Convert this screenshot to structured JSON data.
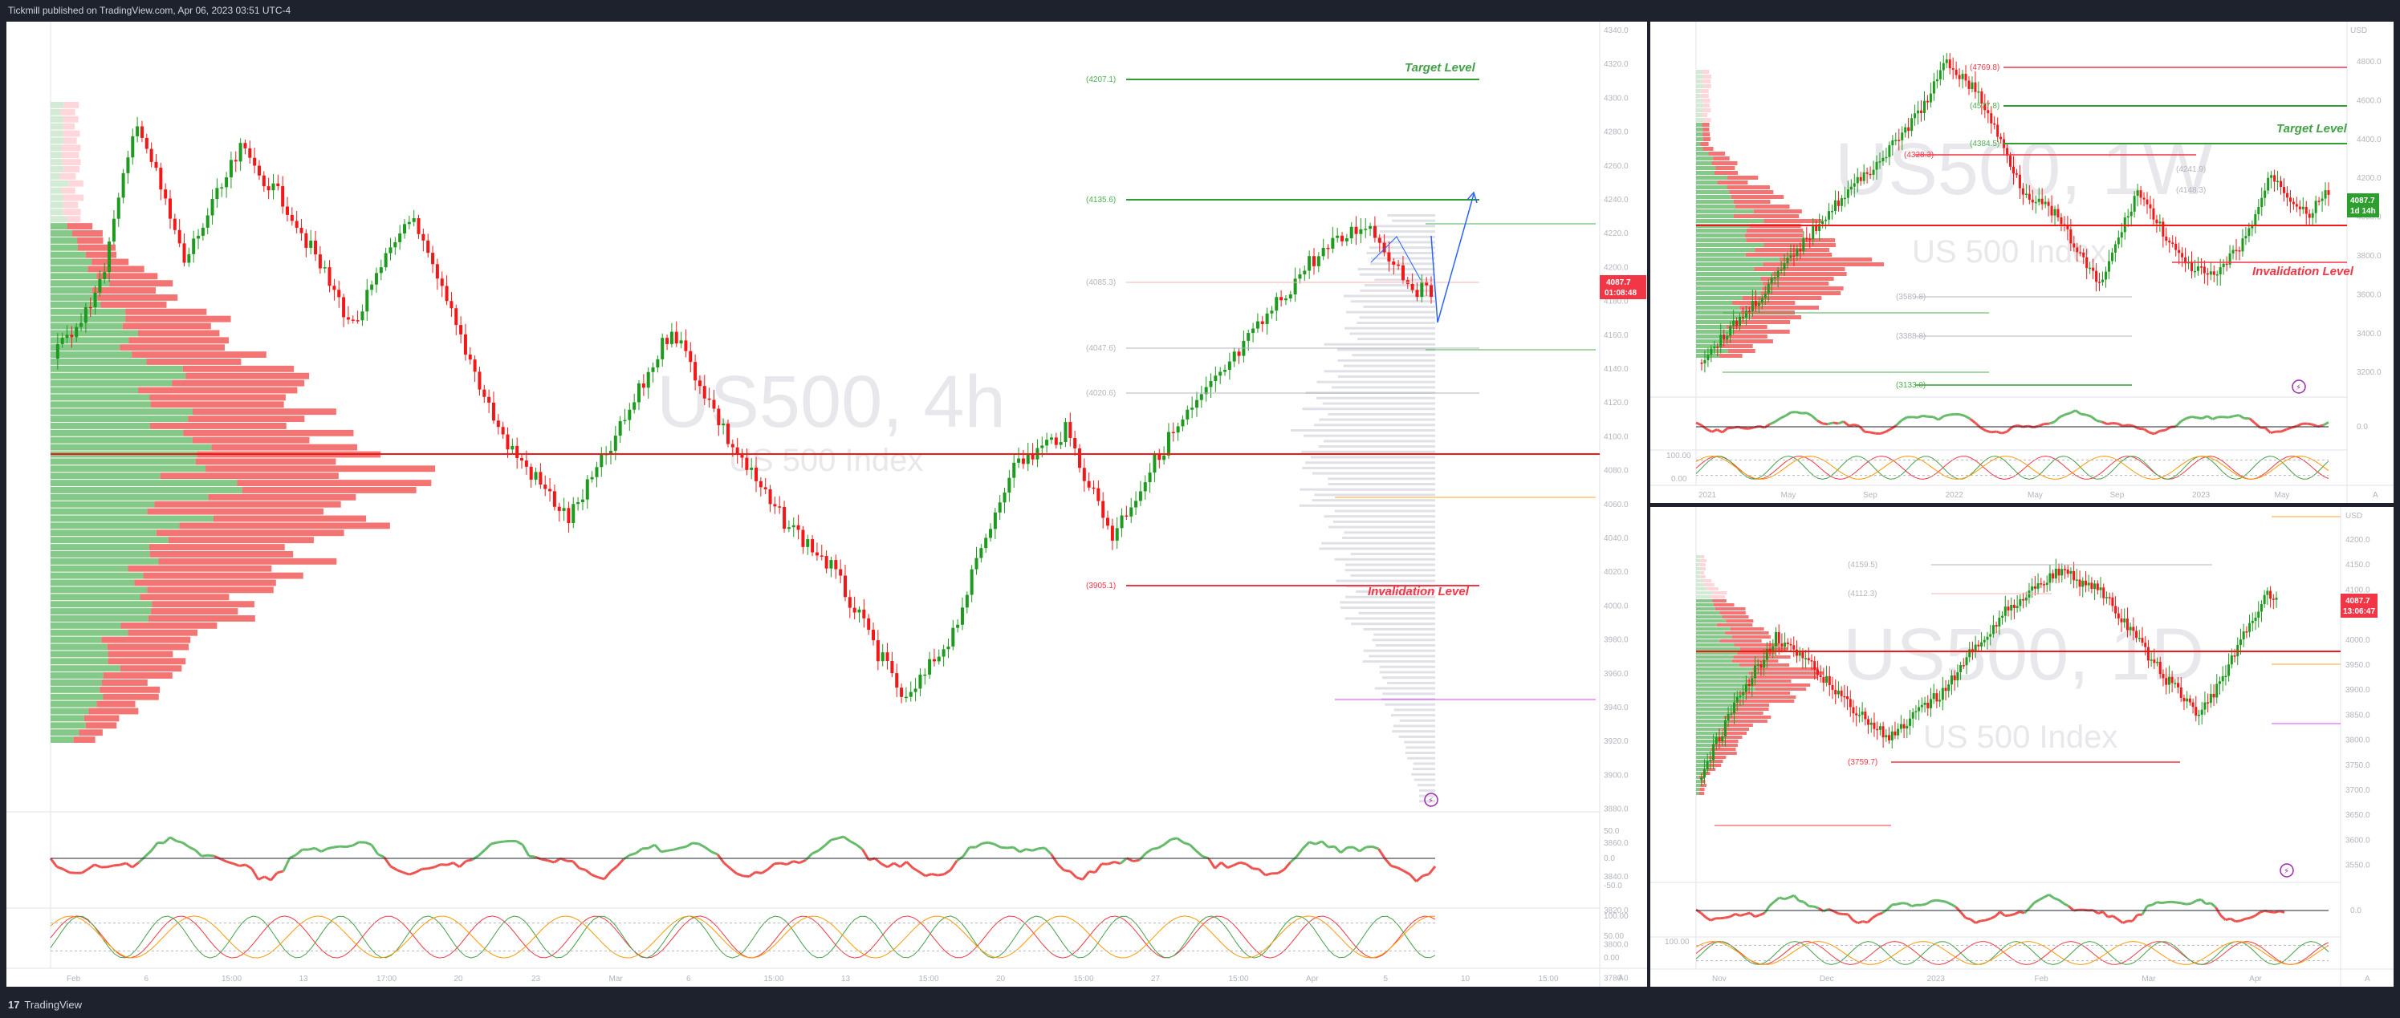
{
  "header": {
    "publish_text": "Tickmill published on TradingView.com, Apr 06, 2023 03:51 UTC-4"
  },
  "footer": {
    "logo_glyph": "17",
    "brand": "TradingView"
  },
  "colors": {
    "up": "#2e9e2e",
    "down": "#f21818",
    "target": "#2e9e2e",
    "invalidation": "#f23645",
    "background": "#ffffff",
    "frame": "#1e222d"
  },
  "main_chart": {
    "watermark_symbol": "US500, 4h",
    "watermark_desc": "US 500 Index",
    "y_ticks": [
      "4340.0",
      "4320.0",
      "4300.0",
      "4280.0",
      "4260.0",
      "4240.0",
      "4220.0",
      "4200.0",
      "4180.0",
      "4160.0",
      "4140.0",
      "4120.0",
      "4100.0",
      "4080.0",
      "4060.0",
      "4040.0",
      "4020.0",
      "4000.0",
      "3980.0",
      "3960.0",
      "3940.0",
      "3920.0",
      "3900.0",
      "3880.0",
      "3860.0",
      "3840.0",
      "3820.0",
      "3800.0",
      "3780.0"
    ],
    "x_ticks": [
      "Feb",
      "6",
      "15:00",
      "13",
      "17:00",
      "20",
      "23",
      "Mar",
      "6",
      "15:00",
      "13",
      "15:00",
      "20",
      "15:00",
      "27",
      "15:00",
      "Apr",
      "5",
      "10",
      "15:00"
    ],
    "levels": {
      "target_value": "(4207.1)",
      "target_label": "Target Level",
      "second_value": "(4135.6)",
      "mid_value": "(4085.3)",
      "lower_value": "(4047.6)",
      "lower2_value": "(4020.6)",
      "invalidation_value": "(3905.1)",
      "invalidation_label": "Invalidation Level"
    },
    "price_box": {
      "price": "4087.7",
      "countdown": "01:08:48"
    },
    "rsi_ticks": [
      "50.0",
      "0.0",
      "-50.0"
    ],
    "stoch_ticks": [
      "100.00",
      "50.00",
      "0.00"
    ],
    "axis_mode": "A"
  },
  "weekly_chart": {
    "watermark_symbol": "US500, 1W",
    "watermark_desc": "US 500 Index",
    "currency": "USD",
    "y_ticks": [
      "4800.0",
      "4600.0",
      "4400.0",
      "4200.0",
      "4000.0",
      "3800.0",
      "3600.0",
      "3400.0",
      "3200.0"
    ],
    "x_ticks": [
      "2021",
      "May",
      "Sep",
      "2022",
      "May",
      "Sep",
      "2023",
      "May"
    ],
    "levels": {
      "top_value": "(4769.8)",
      "v2": "(4577.8)",
      "v3": "(4384.5)",
      "v4": "(4328.3)",
      "v5": "(4241.9)",
      "v6": "(4148.3)",
      "v7": "(3589.8)",
      "v8": "(3388.8)",
      "v9": "(3133.0)",
      "target_label": "Target Level",
      "invalidation_label": "Invalidation Level"
    },
    "price_box": {
      "price": "4087.7",
      "countdown": "1d 14h"
    },
    "rsi_ticks": [
      "0.0"
    ],
    "stoch_ticks": [
      "100.00",
      "0.00"
    ],
    "axis_mode": "A"
  },
  "daily_chart": {
    "watermark_symbol": "US500, 1D",
    "watermark_desc": "US 500 Index",
    "currency": "USD",
    "y_ticks": [
      "4200.0",
      "4150.0",
      "4100.0",
      "4050.0",
      "4000.0",
      "3950.0",
      "3900.0",
      "3850.0",
      "3800.0",
      "3750.0",
      "3700.0",
      "3650.0",
      "3600.0",
      "3550.0"
    ],
    "x_ticks": [
      "Nov",
      "Dec",
      "2023",
      "Feb",
      "Mar",
      "Apr"
    ],
    "levels": {
      "top_value": "(4159.5)",
      "v2": "(4112.3)",
      "v3": "(3759.7)"
    },
    "price_box": {
      "price": "4087.7",
      "countdown": "13:06:47"
    },
    "rsi_ticks": [
      "0.0"
    ],
    "stoch_ticks": [
      "100.00"
    ],
    "axis_mode": "A"
  }
}
